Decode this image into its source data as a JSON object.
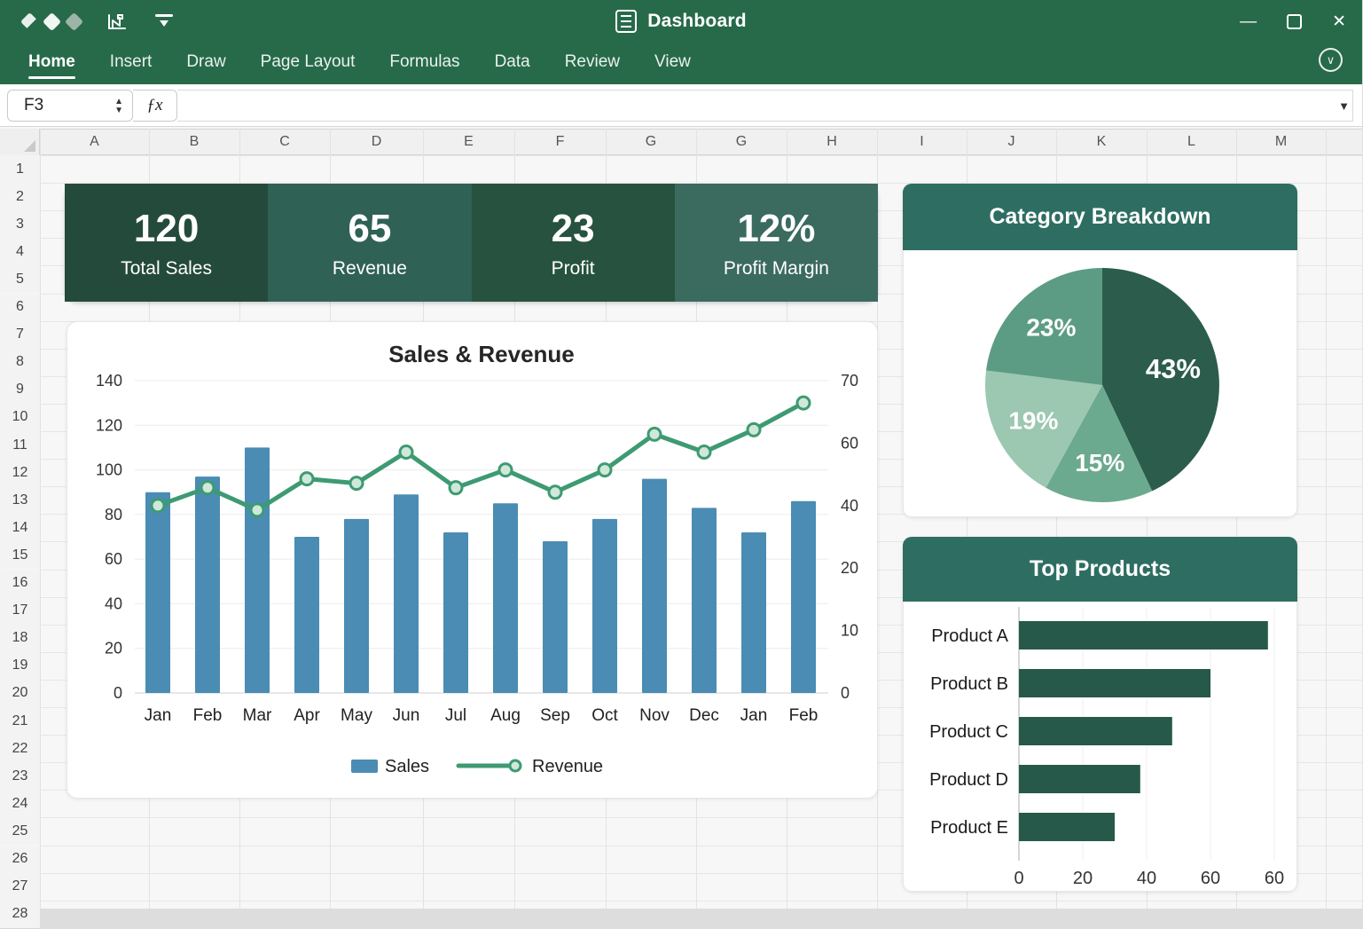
{
  "titlebar": {
    "title": "Dashboard",
    "window_controls": [
      {
        "name": "minimize",
        "glyph": "—"
      },
      {
        "name": "maximize",
        "glyph": ""
      },
      {
        "name": "close",
        "glyph": "✕"
      }
    ]
  },
  "menu": {
    "items": [
      "Home",
      "Insert",
      "Draw",
      "Page Layout",
      "Formulas",
      "Data",
      "Review",
      "View"
    ],
    "active": "Home"
  },
  "formula_bar": {
    "cell_ref": "F3",
    "fx_label": "ƒx",
    "formula_value": "",
    "spinner_up_glyph": "▲",
    "spinner_down_glyph": "▼",
    "dropdown_glyph": "▼",
    "ribbon_collapse_glyph": "∨"
  },
  "grid": {
    "columns": [
      "A",
      "B",
      "C",
      "D",
      "E",
      "F",
      "G",
      "G",
      "H",
      "I",
      "J",
      "K",
      "L",
      "M"
    ],
    "rows": [
      "1",
      "2",
      "3",
      "4",
      "5",
      "6",
      "7",
      "8",
      "9",
      "10",
      "11",
      "12",
      "13",
      "14",
      "15",
      "16",
      "17",
      "18",
      "19",
      "20",
      "21",
      "22",
      "23",
      "24",
      "25",
      "26",
      "27",
      "28"
    ]
  },
  "kpis": [
    {
      "value": "120",
      "label": "Total Sales",
      "color": "#244a3c"
    },
    {
      "value": "65",
      "label": "Revenue",
      "color": "#306155"
    },
    {
      "value": "23",
      "label": "Profit",
      "color": "#26523f"
    },
    {
      "value": "12%",
      "label": "Profit Margin",
      "color": "#3b6a5f"
    }
  ],
  "chart_data": [
    {
      "type": "combo-bar-line",
      "title": "Sales & Revenue",
      "categories": [
        "Jan",
        "Feb",
        "Mar",
        "Apr",
        "May",
        "Jun",
        "Jul",
        "Aug",
        "Sep",
        "Oct",
        "Nov",
        "Dec",
        "Jan",
        "Feb"
      ],
      "series": [
        {
          "name": "Sales",
          "chart": "bar",
          "axis": "left",
          "color": "#4a8cb3",
          "values": [
            90,
            97,
            110,
            70,
            78,
            89,
            72,
            85,
            68,
            78,
            96,
            83,
            72,
            86
          ]
        },
        {
          "name": "Revenue",
          "chart": "line",
          "axis": "right",
          "color": "#3e9a72",
          "marker_fill": "#cfe8da",
          "values": [
            42,
            46,
            41,
            48,
            47,
            54,
            46,
            50,
            45,
            50,
            58,
            54,
            59,
            65
          ]
        }
      ],
      "left_axis": {
        "ticks": [
          "140",
          "120",
          "100",
          "80",
          "60",
          "40",
          "20",
          "0"
        ],
        "min": 0,
        "max": 140
      },
      "right_axis": {
        "ticks": [
          "70",
          "60",
          "40",
          "20",
          "10",
          "0"
        ],
        "min": 0,
        "max": 70
      },
      "legend": [
        "Sales",
        "Revenue"
      ],
      "grid": "horizontal"
    },
    {
      "type": "pie",
      "title": "Category Breakdown",
      "slices": [
        {
          "label": "43%",
          "value": 43,
          "color": "#2b5c4c"
        },
        {
          "label": "15%",
          "value": 15,
          "color": "#6baa8f"
        },
        {
          "label": "19%",
          "value": 19,
          "color": "#9cc7b1"
        },
        {
          "label": "23%",
          "value": 23,
          "color": "#5d9c84"
        }
      ],
      "start_angle_deg": 0,
      "direction": "clockwise",
      "label_color": "#ffffff"
    },
    {
      "type": "bar-horizontal",
      "title": "Top Products",
      "categories": [
        "Product A",
        "Product B",
        "Product C",
        "Product D",
        "Product E"
      ],
      "values": [
        78,
        60,
        48,
        38,
        30
      ],
      "xlim": [
        0,
        80
      ],
      "x_ticks": [
        "0",
        "20",
        "40",
        "60",
        "60"
      ],
      "color": "#27594a",
      "grid": "vertical"
    }
  ]
}
